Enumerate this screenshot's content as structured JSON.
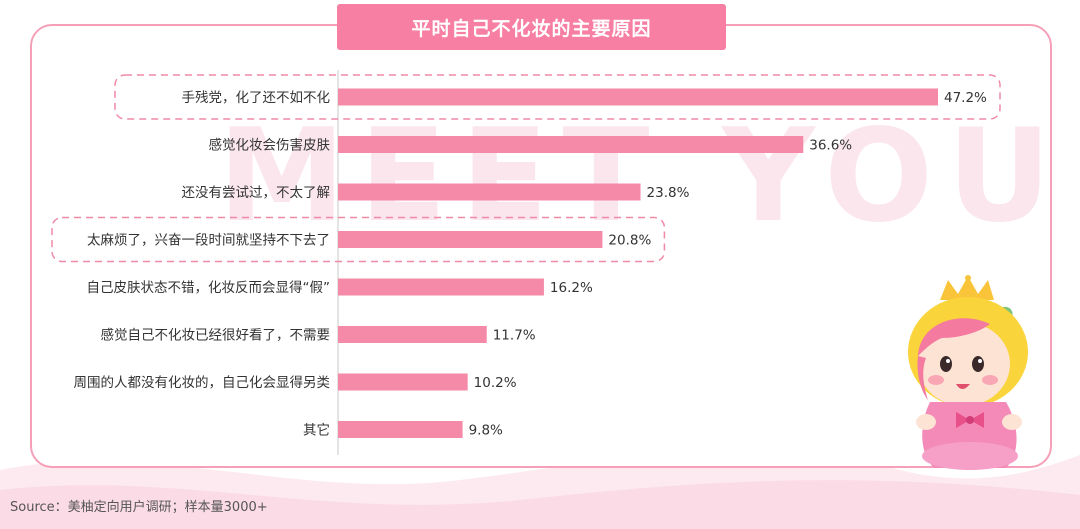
{
  "title": "平时自己不化妆的主要原因",
  "watermark": "MEET YOU",
  "source": "Source：美柚定向用户调研；样本量3000+",
  "colors": {
    "bar": "#f48aa7",
    "accent": "#f77fa4",
    "highlight_border": "#ef8aa6"
  },
  "chart_data": {
    "type": "bar",
    "orientation": "horizontal",
    "categories": [
      "手残党，化了还不如不化",
      "感觉化妆会伤害皮肤",
      "还没有尝试过，不太了解",
      "太麻烦了，兴奋一段时间就坚持不下去了",
      "自己皮肤状态不错，化妆反而会显得“假”",
      "感觉自己不化妆已经很好看了，不需要",
      "周围的人都没有化妆的，自己化会显得另类",
      "其它"
    ],
    "values": [
      47.2,
      36.6,
      23.8,
      20.8,
      16.2,
      11.7,
      10.2,
      9.8
    ],
    "labels": [
      "47.2%",
      "36.6%",
      "23.8%",
      "20.8%",
      "16.2%",
      "11.7%",
      "10.2%",
      "9.8%"
    ],
    "highlighted": [
      0,
      3
    ],
    "xlim": [
      0,
      50
    ],
    "unit": "%"
  }
}
